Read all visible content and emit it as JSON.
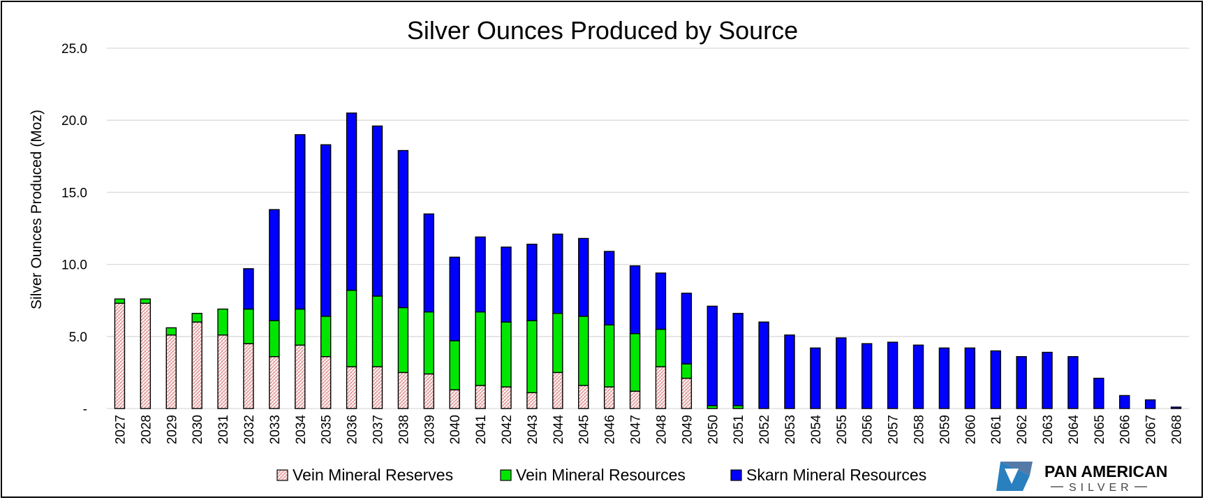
{
  "chart_data": {
    "type": "bar",
    "stacked": true,
    "title": "Silver Ounces Produced by Source",
    "xlabel": "",
    "ylabel": "Silver Ounces Produced (Moz)",
    "ylim": [
      0,
      25
    ],
    "yticks": [
      "-",
      "5.0",
      "10.0",
      "15.0",
      "20.0",
      "25.0"
    ],
    "grid": true,
    "legend_position": "bottom",
    "categories": [
      "2027",
      "2028",
      "2029",
      "2030",
      "2031",
      "2032",
      "2033",
      "2034",
      "2035",
      "2036",
      "2037",
      "2038",
      "2039",
      "2040",
      "2041",
      "2042",
      "2043",
      "2044",
      "2045",
      "2046",
      "2047",
      "2048",
      "2049",
      "2050",
      "2051",
      "2052",
      "2053",
      "2054",
      "2055",
      "2056",
      "2057",
      "2058",
      "2059",
      "2060",
      "2061",
      "2062",
      "2063",
      "2064",
      "2065",
      "2066",
      "2067",
      "2068"
    ],
    "series": [
      {
        "name": "Vein Mineral Reserves",
        "color": "#f4c7c3",
        "pattern": "hatched",
        "values": [
          7.3,
          7.3,
          5.1,
          6.0,
          5.1,
          4.5,
          3.6,
          4.4,
          3.6,
          2.9,
          2.9,
          2.5,
          2.4,
          1.3,
          1.6,
          1.5,
          1.1,
          2.5,
          1.6,
          1.5,
          1.2,
          2.9,
          2.1,
          0.0,
          0.0,
          0,
          0,
          0,
          0,
          0,
          0,
          0,
          0,
          0,
          0,
          0,
          0,
          0,
          0,
          0,
          0,
          0
        ]
      },
      {
        "name": "Vein Mineral Resources",
        "color": "#00e600",
        "values": [
          0.3,
          0.3,
          0.5,
          0.6,
          1.8,
          2.4,
          2.5,
          2.5,
          2.8,
          5.3,
          4.9,
          4.5,
          4.3,
          3.4,
          5.1,
          4.5,
          5.0,
          4.1,
          4.8,
          4.3,
          4.0,
          2.6,
          1.0,
          0.2,
          0.2,
          0,
          0,
          0,
          0,
          0,
          0,
          0,
          0,
          0,
          0,
          0,
          0,
          0,
          0,
          0,
          0,
          0
        ]
      },
      {
        "name": "Skarn Mineral Resources",
        "color": "#0000ff",
        "values": [
          0,
          0,
          0,
          0,
          0,
          2.8,
          7.7,
          12.1,
          11.9,
          12.3,
          11.8,
          10.9,
          6.8,
          5.8,
          5.2,
          5.2,
          5.3,
          5.5,
          5.4,
          5.1,
          4.7,
          3.9,
          4.9,
          6.9,
          6.4,
          6.0,
          5.1,
          4.2,
          4.9,
          4.5,
          4.6,
          4.4,
          4.2,
          4.2,
          4.0,
          3.6,
          3.9,
          3.6,
          2.1,
          0.9,
          0.6,
          0.1
        ]
      }
    ]
  },
  "logo": {
    "name": "PAN AMERICAN",
    "sub": "SILVER",
    "icon": "pan-american-silver-logo-icon",
    "colors": {
      "primary": "#2a7fbf",
      "dark": "#1b4f8a"
    }
  }
}
